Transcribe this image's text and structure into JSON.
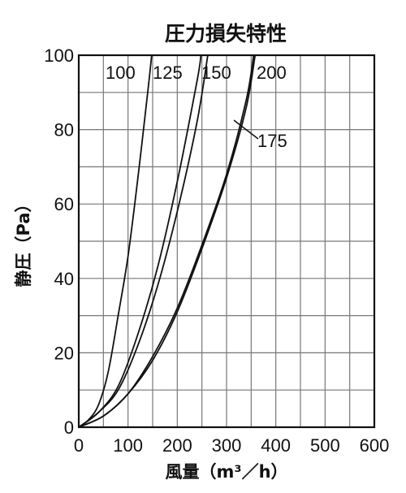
{
  "chart_data": {
    "type": "line",
    "title": "圧力損失特性",
    "xlabel": "風量（m³／h）",
    "ylabel": "静圧（Pa）",
    "xlim": [
      0,
      600
    ],
    "ylim": [
      0,
      100
    ],
    "x_ticks": [
      "0",
      "100",
      "200",
      "300",
      "400",
      "500",
      "600"
    ],
    "y_ticks": [
      "0",
      "20",
      "40",
      "60",
      "80",
      "100"
    ],
    "grid": true,
    "series": [
      {
        "name": "100",
        "points": [
          [
            0,
            0
          ],
          [
            20,
            2
          ],
          [
            40,
            6
          ],
          [
            60,
            15
          ],
          [
            80,
            30
          ],
          [
            100,
            46
          ],
          [
            120,
            67
          ],
          [
            140,
            90
          ],
          [
            148,
            100
          ]
        ]
      },
      {
        "name": "125",
        "points": [
          [
            0,
            0
          ],
          [
            40,
            4
          ],
          [
            80,
            11
          ],
          [
            120,
            25
          ],
          [
            160,
            43
          ],
          [
            200,
            66
          ],
          [
            240,
            93
          ],
          [
            248,
            100
          ]
        ]
      },
      {
        "name": "150",
        "points": [
          [
            0,
            0
          ],
          [
            40,
            4
          ],
          [
            80,
            10
          ],
          [
            120,
            22
          ],
          [
            160,
            38
          ],
          [
            200,
            58
          ],
          [
            240,
            82
          ],
          [
            262,
            100
          ]
        ]
      },
      {
        "name": "175",
        "points": [
          [
            0,
            0
          ],
          [
            50,
            3
          ],
          [
            100,
            9
          ],
          [
            150,
            19
          ],
          [
            200,
            32
          ],
          [
            250,
            49
          ],
          [
            300,
            68
          ],
          [
            340,
            88
          ],
          [
            355,
            100
          ]
        ]
      },
      {
        "name": "200",
        "points": [
          [
            0,
            0
          ],
          [
            50,
            3
          ],
          [
            100,
            9
          ],
          [
            150,
            18
          ],
          [
            200,
            31
          ],
          [
            250,
            48
          ],
          [
            300,
            67
          ],
          [
            340,
            86
          ],
          [
            358,
            100
          ]
        ]
      }
    ]
  }
}
